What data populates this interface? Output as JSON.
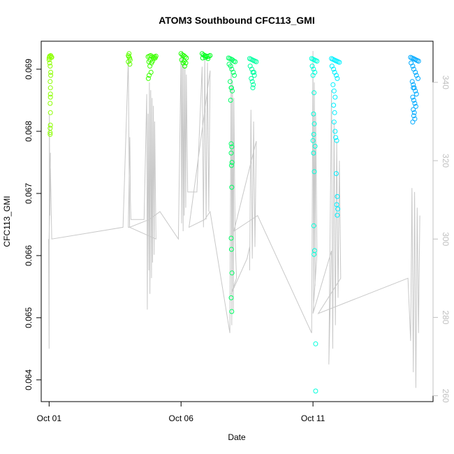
{
  "chart_data": {
    "type": "scatter",
    "title": "ATOM3 Southbound CFC113_GMI",
    "xlabel": "Date",
    "ylabel": "CFC113_GMI",
    "x_ticks": [
      {
        "label": "Oct 01",
        "value": 1
      },
      {
        "label": "Oct 06",
        "value": 6
      },
      {
        "label": "Oct 11",
        "value": 11
      }
    ],
    "y_ticks": [
      "0.064",
      "0.065",
      "0.066",
      "0.067",
      "0.068",
      "0.069"
    ],
    "y_right_ticks": [
      "260",
      "280",
      "300",
      "320",
      "340"
    ],
    "xlim": [
      0.7,
      15.55
    ],
    "ylim": [
      0.06365,
      0.06945
    ],
    "y2lim": [
      258.5,
      350.5
    ],
    "colors": {
      "axis": "#000000",
      "right_axis": "#c0c0c0",
      "overlay_line": "#c8c8c8"
    },
    "series": [
      {
        "color": "#8cff00",
        "x": [
          1.0,
          1.0,
          1.02,
          1.02,
          1.04,
          1.06,
          1.06,
          1.04,
          1.05,
          1.05,
          1.05,
          1.04,
          1.05,
          1.05,
          1.04,
          1.04,
          1.04,
          1.08,
          1.06,
          1.02,
          1.1
        ],
        "y": [
          0.06915,
          0.06918,
          0.0692,
          0.0691,
          0.06905,
          0.06895,
          0.0689,
          0.0688,
          0.0687,
          0.0686,
          0.06855,
          0.06845,
          0.0683,
          0.0681,
          0.06805,
          0.06798,
          0.06795,
          0.0692,
          0.06922,
          0.06921,
          0.06919
        ]
      },
      {
        "color": "#5cff00",
        "x": [
          4.0,
          4.02,
          4.05,
          4.07,
          4.0,
          4.06,
          4.03
        ],
        "y": [
          0.06922,
          0.0692,
          0.06918,
          0.06915,
          0.06912,
          0.06908,
          0.06925
        ]
      },
      {
        "color": "#3cff00",
        "x": [
          4.75,
          4.8,
          4.85,
          4.9,
          4.95,
          5.0,
          5.05,
          4.78,
          4.83,
          4.88,
          4.92,
          4.97,
          5.02,
          4.82,
          4.86,
          4.79,
          4.76
        ],
        "y": [
          0.0692,
          0.06921,
          0.06922,
          0.0692,
          0.06919,
          0.0692,
          0.06921,
          0.06912,
          0.06915,
          0.0691,
          0.06913,
          0.06917,
          0.06918,
          0.06905,
          0.06895,
          0.0689,
          0.06885
        ]
      },
      {
        "color": "#1eff00",
        "x": [
          6.0,
          6.05,
          6.1,
          6.15,
          6.2,
          6.02,
          6.12,
          6.18,
          6.08,
          6.14
        ],
        "y": [
          0.06925,
          0.06923,
          0.06922,
          0.0692,
          0.06918,
          0.06915,
          0.06913,
          0.0691,
          0.0691,
          0.06905
        ]
      },
      {
        "color": "#00ff1e",
        "x": [
          6.8,
          6.85,
          6.9,
          6.95,
          7.0,
          7.05,
          7.1,
          6.82,
          6.92,
          7.02
        ],
        "y": [
          0.06925,
          0.06923,
          0.06922,
          0.06921,
          0.0692,
          0.06921,
          0.06922,
          0.06918,
          0.06919,
          0.06917
        ]
      },
      {
        "color": "#00ff64",
        "x": [
          7.8,
          7.85,
          7.9,
          7.95,
          8.0,
          8.05,
          7.82,
          7.88,
          7.92,
          7.98,
          8.02,
          7.86,
          7.9,
          7.94,
          7.88,
          7.9,
          7.92,
          7.9,
          7.93,
          7.91,
          7.92,
          7.9,
          7.91,
          7.93,
          7.9,
          7.92,
          7.91
        ],
        "y": [
          0.06918,
          0.06917,
          0.06916,
          0.06915,
          0.06913,
          0.06912,
          0.06908,
          0.06905,
          0.069,
          0.06895,
          0.0689,
          0.0688,
          0.0687,
          0.06865,
          0.0685,
          0.0678,
          0.06775,
          0.06765,
          0.0675,
          0.06745,
          0.0671,
          0.06628,
          0.0661,
          0.06572,
          0.06532,
          0.0651,
          0.0687
        ]
      },
      {
        "color": "#00ffa0",
        "x": [
          8.6,
          8.65,
          8.7,
          8.75,
          8.8,
          8.85,
          8.62,
          8.68,
          8.72,
          8.78,
          8.66,
          8.7,
          8.74,
          8.72,
          8.76
        ],
        "y": [
          0.06917,
          0.06916,
          0.06915,
          0.06914,
          0.06913,
          0.06912,
          0.06905,
          0.069,
          0.06895,
          0.0689,
          0.06885,
          0.0688,
          0.06875,
          0.0687,
          0.06895
        ]
      },
      {
        "color": "#00ffdc",
        "x": [
          10.95,
          11.0,
          11.05,
          11.1,
          11.15,
          10.97,
          11.02,
          11.07,
          11.0,
          11.04,
          11.02,
          11.05,
          11.03,
          11.0,
          11.08,
          11.02,
          11.05,
          11.03,
          11.06,
          11.04,
          11.1,
          11.1
        ],
        "y": [
          0.06917,
          0.06916,
          0.06915,
          0.06914,
          0.06913,
          0.06905,
          0.069,
          0.06895,
          0.0689,
          0.06862,
          0.06828,
          0.06812,
          0.06795,
          0.06785,
          0.06776,
          0.06765,
          0.06735,
          0.06648,
          0.06608,
          0.06602,
          0.06458,
          0.06382
        ]
      },
      {
        "color": "#00f0ff",
        "x": [
          11.7,
          11.75,
          11.8,
          11.85,
          11.9,
          11.95,
          12.0,
          11.72,
          11.78,
          11.82,
          11.88,
          11.92,
          11.76,
          11.8,
          11.84,
          11.78,
          11.82,
          11.8,
          11.84,
          11.86,
          11.9,
          11.88,
          11.92,
          11.9,
          11.94,
          11.92
        ],
        "y": [
          0.06917,
          0.06916,
          0.06915,
          0.06914,
          0.06913,
          0.06912,
          0.06911,
          0.06905,
          0.069,
          0.06895,
          0.0689,
          0.06885,
          0.06875,
          0.06865,
          0.06855,
          0.06842,
          0.0683,
          0.06815,
          0.068,
          0.0679,
          0.06785,
          0.06732,
          0.06695,
          0.06682,
          0.06675,
          0.06665
        ]
      },
      {
        "color": "#00aaff",
        "x": [
          14.7,
          14.75,
          14.8,
          14.85,
          14.9,
          14.95,
          15.0,
          14.72,
          14.78,
          14.82,
          14.88,
          14.92,
          14.98,
          14.76,
          14.8,
          14.84,
          14.88,
          14.92,
          14.78,
          14.82,
          14.86,
          14.9,
          14.8,
          14.84,
          14.82,
          14.86,
          14.78,
          14.8
        ],
        "y": [
          0.06919,
          0.06918,
          0.06917,
          0.06916,
          0.06915,
          0.06914,
          0.06913,
          0.0691,
          0.06905,
          0.069,
          0.06895,
          0.0689,
          0.06885,
          0.0688,
          0.06875,
          0.0687,
          0.06865,
          0.0686,
          0.06855,
          0.0685,
          0.06845,
          0.0684,
          0.06835,
          0.0683,
          0.06825,
          0.0682,
          0.06815,
          0.0687
        ]
      }
    ],
    "overlay": {
      "color": "#c8c8c8",
      "axis": "right",
      "x": [
        0.98,
        1.0,
        1.01,
        1.03,
        1.05,
        1.0,
        1.05,
        1.1,
        3.8,
        4.0,
        4.02,
        4.05,
        4.0,
        4.06,
        4.08,
        4.1,
        4.6,
        4.7,
        4.72,
        4.75,
        4.78,
        4.8,
        4.82,
        4.85,
        4.88,
        4.9,
        4.92,
        4.95,
        4.98,
        5.0,
        5.05,
        4.05,
        4.8,
        5.2,
        5.9,
        6.0,
        6.02,
        6.05,
        6.08,
        6.1,
        6.12,
        6.15,
        6.18,
        6.2,
        6.25,
        6.6,
        6.8,
        6.85,
        6.9,
        6.95,
        7.0,
        7.05,
        7.1,
        6.3,
        6.9,
        7.1,
        7.85,
        7.9,
        7.92,
        7.95,
        7.98,
        8.0,
        8.05,
        8.1,
        7.9,
        8.5,
        8.6,
        8.6,
        8.65,
        8.7,
        8.75,
        8.8,
        8.85,
        8.0,
        8.9,
        10.95,
        11.0,
        11.02,
        11.05,
        11.08,
        11.1,
        11.15,
        11.0,
        11.7,
        11.6,
        11.7,
        11.75,
        11.8,
        11.85,
        11.9,
        11.95,
        12.0,
        12.05,
        11.2,
        14.6,
        14.7,
        14.75,
        14.8,
        14.85,
        14.9,
        14.95,
        15.0,
        15.05
      ],
      "y": [
        300,
        272,
        332,
        306,
        322,
        300,
        318,
        300,
        303,
        346,
        328,
        303,
        303,
        326,
        310,
        305,
        305,
        337,
        282,
        332,
        292,
        340,
        286,
        338,
        290,
        336,
        294,
        334,
        296,
        330,
        300,
        303,
        305,
        307,
        300,
        347,
        304,
        348,
        302,
        345,
        306,
        344,
        308,
        342,
        312,
        312,
        344,
        303,
        346,
        305,
        345,
        307,
        343,
        303,
        305,
        307,
        276,
        346,
        278,
        340,
        282,
        336,
        300,
        290,
        286,
        295,
        298,
        292,
        333,
        295,
        330,
        298,
        325,
        302,
        306,
        276,
        348,
        282,
        340,
        288,
        332,
        296,
        281,
        297,
        268,
        338,
        272,
        330,
        278,
        325,
        285,
        320,
        290,
        281,
        290,
        274,
        313,
        266,
        312,
        262,
        308,
        276,
        306
      ]
    }
  }
}
